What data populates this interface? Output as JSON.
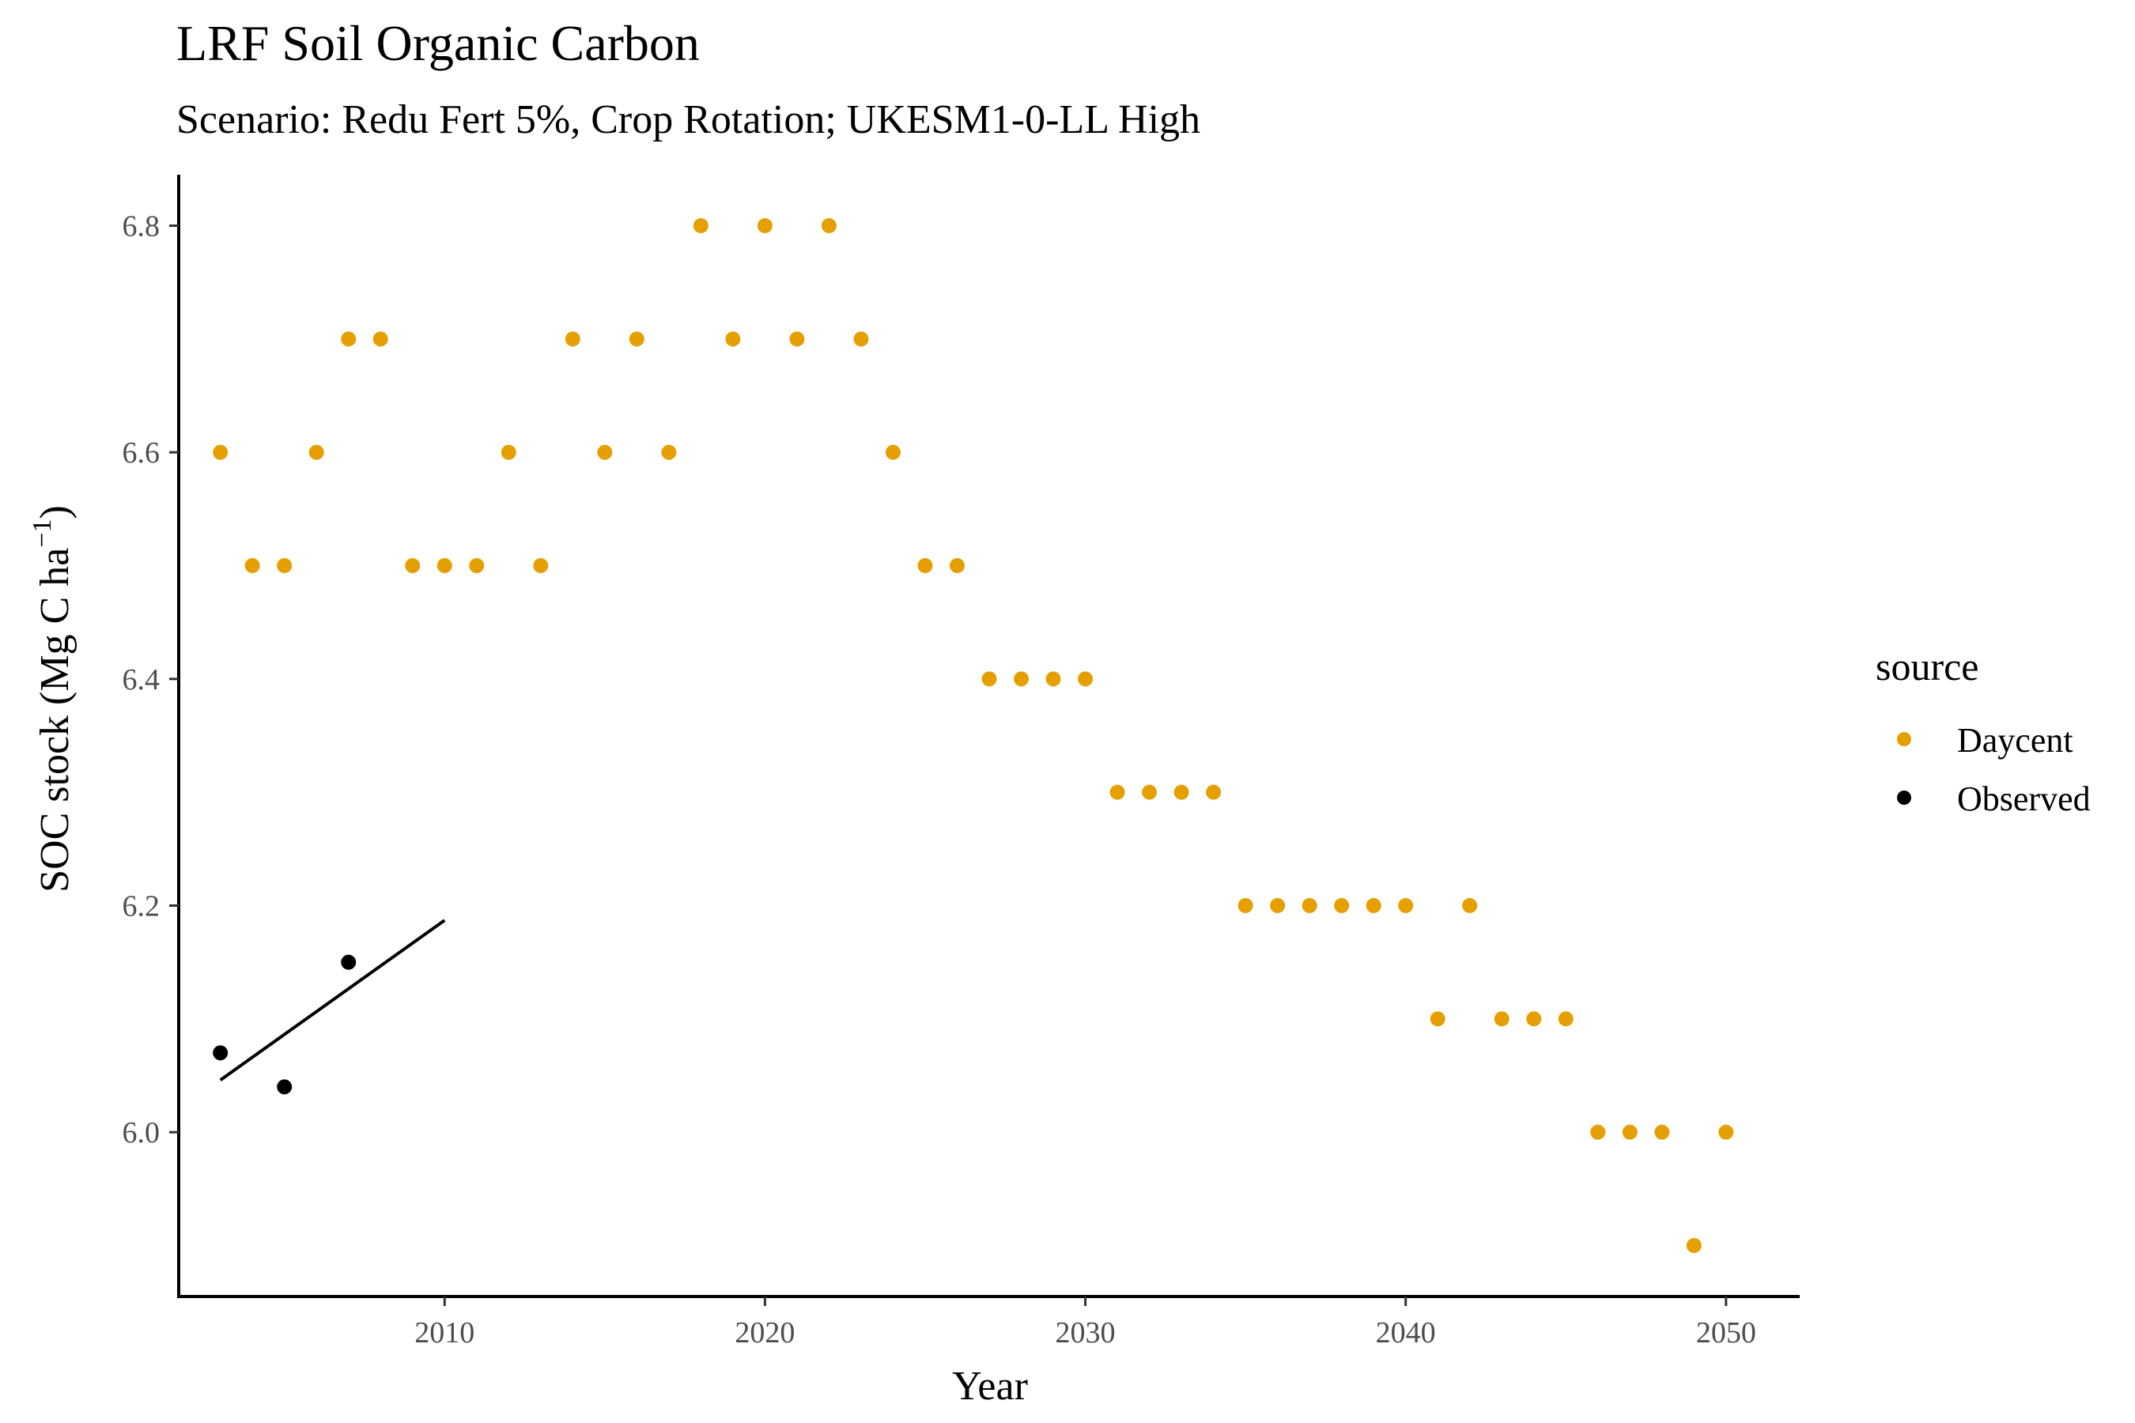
{
  "chart_data": {
    "type": "scatter",
    "title": "LRF Soil Organic Carbon",
    "subtitle": "Scenario: Redu Fert 5%, Crop Rotation; UKESM1-0-LL High",
    "xlabel": "Year",
    "ylabel_main": "SOC stock (Mg C ha",
    "ylabel_sup": "−1",
    "ylabel_close": ")",
    "xlim": [
      2001.7,
      2052.3
    ],
    "ylim": [
      5.855,
      6.845
    ],
    "xticks": [
      2010,
      2020,
      2030,
      2040,
      2050
    ],
    "yticks": [
      6.0,
      6.2,
      6.4,
      6.6,
      6.8
    ],
    "grid": false,
    "legend": {
      "title": "source",
      "position": "right",
      "entries": [
        {
          "label": "Daycent",
          "color": "#E69F00"
        },
        {
          "label": "Observed",
          "color": "#000000"
        }
      ]
    },
    "series": [
      {
        "name": "Daycent",
        "color": "#E69F00",
        "x": [
          2003,
          2004,
          2005,
          2006,
          2007,
          2008,
          2009,
          2010,
          2011,
          2012,
          2013,
          2014,
          2015,
          2016,
          2017,
          2018,
          2019,
          2020,
          2021,
          2022,
          2023,
          2024,
          2025,
          2026,
          2027,
          2028,
          2029,
          2030,
          2031,
          2032,
          2033,
          2034,
          2035,
          2036,
          2037,
          2038,
          2039,
          2040,
          2041,
          2042,
          2043,
          2044,
          2045,
          2046,
          2047,
          2048,
          2049,
          2050
        ],
        "y": [
          6.6,
          6.5,
          6.5,
          6.6,
          6.7,
          6.7,
          6.5,
          6.5,
          6.5,
          6.6,
          6.5,
          6.7,
          6.6,
          6.7,
          6.6,
          6.8,
          6.7,
          6.8,
          6.7,
          6.8,
          6.7,
          6.6,
          6.5,
          6.5,
          6.4,
          6.4,
          6.4,
          6.4,
          6.3,
          6.3,
          6.3,
          6.3,
          6.2,
          6.2,
          6.2,
          6.2,
          6.2,
          6.2,
          6.1,
          6.2,
          6.1,
          6.1,
          6.1,
          6.0,
          6.0,
          6.0,
          5.9,
          6.0
        ]
      },
      {
        "name": "Observed",
        "color": "#000000",
        "x": [
          2003,
          2005,
          2007
        ],
        "y": [
          6.07,
          6.04,
          6.15
        ]
      }
    ],
    "trendline": {
      "series": "Observed",
      "color": "#000000",
      "x": [
        2003,
        2010
      ],
      "y": [
        6.046,
        6.187
      ]
    }
  }
}
